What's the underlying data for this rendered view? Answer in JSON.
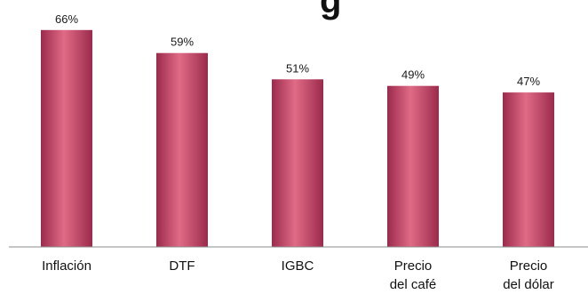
{
  "chart_data": {
    "type": "bar",
    "title_fragment": "g",
    "categories": [
      "Inflación",
      "DTF",
      "IGBC",
      "Precio del café",
      "Precio del dólar"
    ],
    "category_lines": [
      [
        "Inflación"
      ],
      [
        "DTF"
      ],
      [
        "IGBC"
      ],
      [
        "Precio",
        "del café"
      ],
      [
        "Precio",
        "del dólar"
      ]
    ],
    "values": [
      66,
      59,
      51,
      49,
      47
    ],
    "value_labels": [
      "66%",
      "59%",
      "51%",
      "49%",
      "47%"
    ],
    "unit": "%",
    "ylim": [
      0,
      70
    ],
    "grid": false,
    "legend": "none",
    "colors": {
      "bar_dark": "#9b2a4c",
      "bar_light": "#e06b86",
      "axis": "#8c8c8c"
    }
  }
}
